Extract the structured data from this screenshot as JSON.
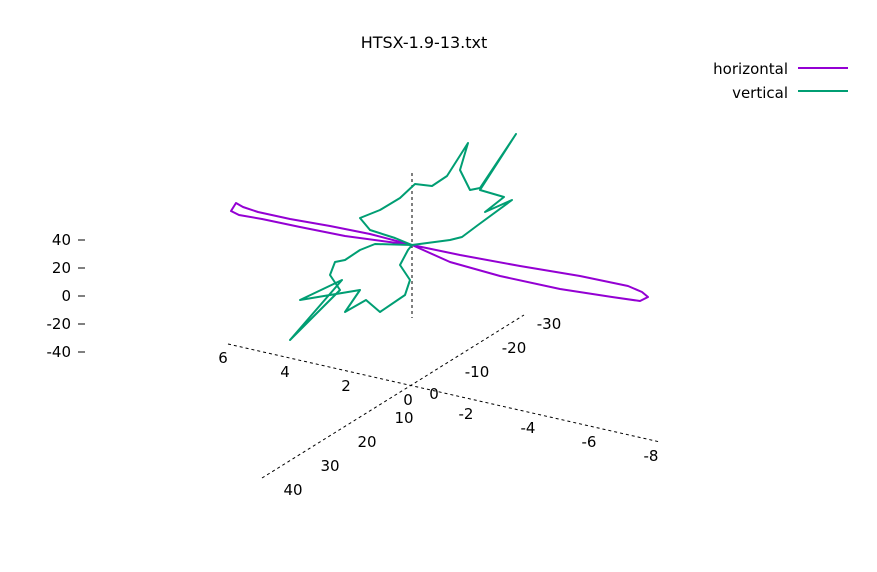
{
  "chart_data": {
    "type": "line",
    "projection": "3d",
    "title": "HTSX-1.9-13.txt",
    "legend": {
      "placement": "top-right"
    },
    "series": [
      {
        "name": "horizontal",
        "color": "#9400d3"
      },
      {
        "name": "vertical",
        "color": "#009e73"
      }
    ],
    "x_axis": {
      "ticks": [
        "6",
        "4",
        "2",
        "0",
        "-2",
        "-4",
        "-6",
        "-8"
      ],
      "range": [
        6,
        -8
      ]
    },
    "y_axis": {
      "ticks": [
        "40",
        "30",
        "20",
        "10",
        "0",
        "-10",
        "-20",
        "-30"
      ],
      "range": [
        40,
        -30
      ]
    },
    "z_axis": {
      "ticks": [
        "40",
        "20",
        "0",
        "-20",
        "-40"
      ],
      "range": [
        -40,
        40
      ]
    }
  }
}
